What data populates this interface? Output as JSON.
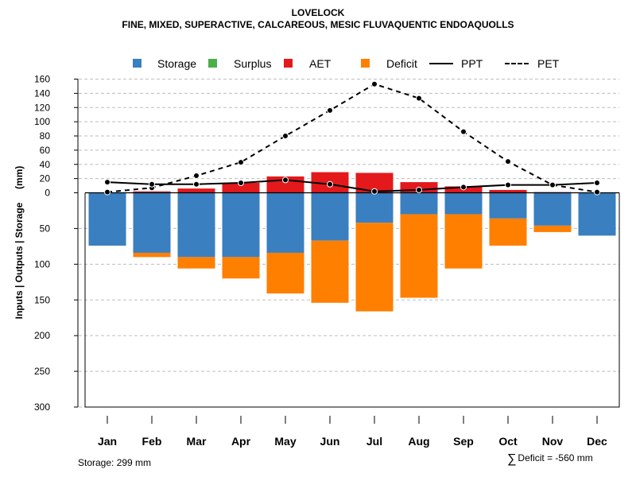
{
  "title": "LOVELOCK",
  "subtitle": "FINE, MIXED, SUPERACTIVE, CALCAREOUS, MESIC FLUVAQUENTIC ENDOAQUOLLS",
  "legend": {
    "storage": "Storage",
    "surplus": "Surplus",
    "aet": "AET",
    "deficit": "Deficit",
    "ppt": "PPT",
    "pet": "PET"
  },
  "colors": {
    "storage": "#3a7fbf",
    "surplus": "#4daf4a",
    "aet": "#e3191c",
    "deficit": "#ff7f00"
  },
  "footer": {
    "storage_text": "Storage: 299 mm",
    "deficit_symbol": "∑",
    "deficit_text": "Deficit = -560 mm"
  },
  "chart_data": {
    "type": "bar",
    "title": "LOVELOCK",
    "ylabel": "Inputs | Outputs | Storage     (mm)",
    "categories": [
      "Jan",
      "Feb",
      "Mar",
      "Apr",
      "May",
      "Jun",
      "Jul",
      "Aug",
      "Sep",
      "Oct",
      "Nov",
      "Dec"
    ],
    "upper_axis": {
      "range": [
        0,
        160
      ],
      "ticks": [
        "0",
        "20",
        "40",
        "60",
        "80",
        "100",
        "120",
        "140",
        "160"
      ]
    },
    "lower_axis": {
      "range": [
        0,
        300
      ],
      "ticks": [
        "0",
        "50",
        "100",
        "150",
        "200",
        "250",
        "300"
      ]
    },
    "series": [
      {
        "name": "AET",
        "kind": "bar-up",
        "values": [
          0,
          2,
          6,
          14,
          23,
          29,
          28,
          15,
          9,
          4,
          1,
          0
        ]
      },
      {
        "name": "Surplus",
        "kind": "bar-up",
        "values": [
          0,
          0,
          0,
          0,
          0,
          0,
          0,
          0,
          0,
          0,
          0,
          0
        ]
      },
      {
        "name": "Storage",
        "kind": "bar-down",
        "values": [
          74,
          84,
          90,
          90,
          84,
          67,
          42,
          30,
          30,
          36,
          46,
          60
        ]
      },
      {
        "name": "Deficit",
        "kind": "bar-down-stacked",
        "values": [
          0,
          6,
          16,
          30,
          57,
          87,
          124,
          117,
          76,
          38,
          9,
          0
        ]
      },
      {
        "name": "PPT",
        "kind": "line-solid",
        "values": [
          15,
          12,
          12,
          14,
          18,
          12,
          2,
          4,
          8,
          11,
          11,
          14
        ]
      },
      {
        "name": "PET",
        "kind": "line-dashed",
        "values": [
          1,
          7,
          24,
          43,
          80,
          116,
          153,
          133,
          86,
          44,
          11,
          1
        ]
      }
    ]
  }
}
